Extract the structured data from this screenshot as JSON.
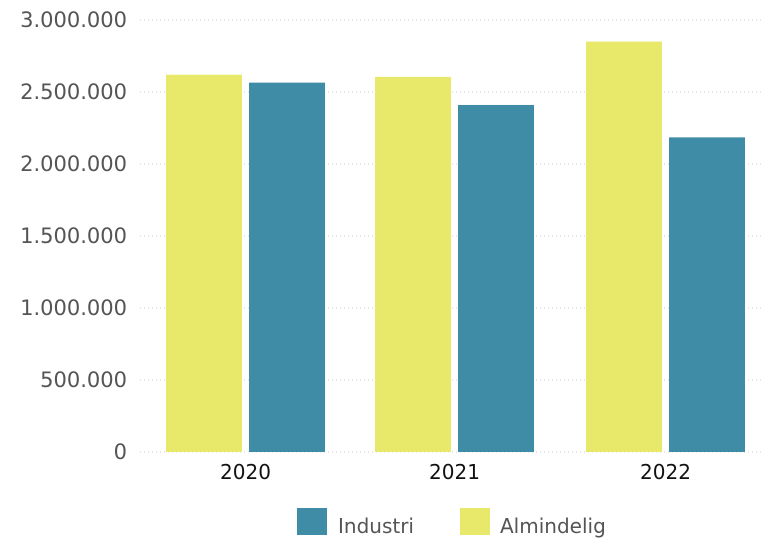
{
  "chart_data": {
    "type": "bar",
    "categories": [
      "2020",
      "2021",
      "2022"
    ],
    "series": [
      {
        "name": "Almindelig",
        "color": "#e8e96a",
        "values": [
          2620000,
          2605000,
          2850000
        ]
      },
      {
        "name": "Industri",
        "color": "#3e8ca6",
        "values": [
          2565000,
          2410000,
          2185000
        ]
      }
    ],
    "ylim": [
      0,
      3000000
    ],
    "yticks": [
      0,
      500000,
      1000000,
      1500000,
      2000000,
      2500000,
      3000000
    ],
    "ytick_labels": [
      "0",
      "500.000",
      "1.000.000",
      "1.500.000",
      "2.000.000",
      "2.500.000",
      "3.000.000"
    ],
    "grid": true,
    "legend": {
      "placement": "bottom-center",
      "order": [
        "Industri",
        "Almindelig"
      ]
    }
  }
}
